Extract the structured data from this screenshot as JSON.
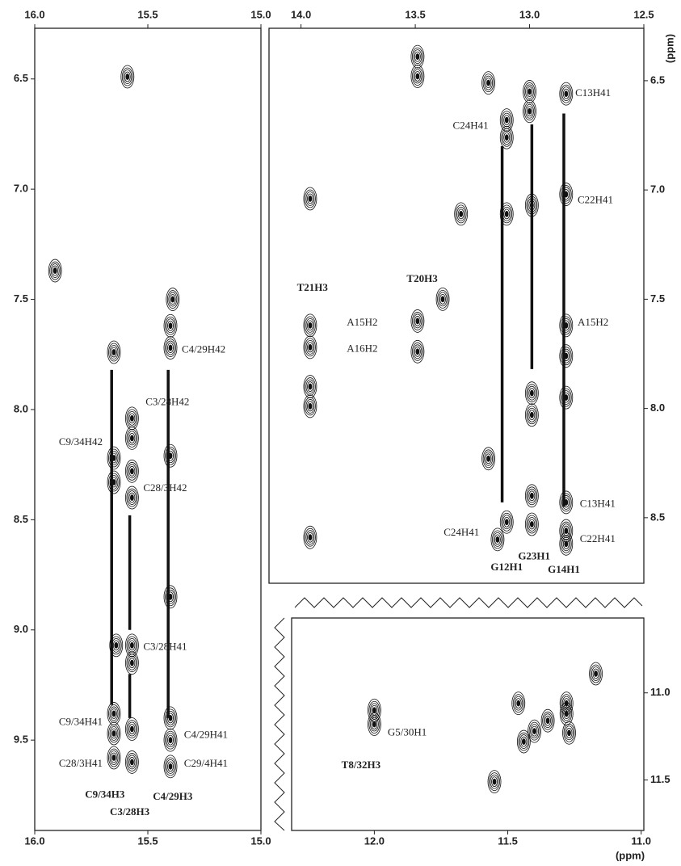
{
  "axis_unit": "(ppm)",
  "chart_data": [
    {
      "type": "contour",
      "x_axis": "both",
      "y_axis": "left",
      "xlim": [
        16.0,
        15.0
      ],
      "ylim": [
        6.27,
        9.91
      ],
      "xticks": [
        {
          "value": 16.0,
          "label": "16.0"
        },
        15.5,
        {
          "value": 15.0,
          "label": "15.0"
        }
      ],
      "yticks": [
        6.5,
        {
          "value": 7.0,
          "label": "7.0"
        },
        7.5,
        {
          "value": 8.0,
          "label": "8.0"
        },
        8.5,
        {
          "value": 9.0,
          "label": "9.0"
        },
        9.5
      ],
      "peaks": [
        {
          "x": 15.59,
          "y": 6.49
        },
        {
          "x": 15.91,
          "y": 7.37
        },
        {
          "x": 15.39,
          "y": 7.5
        },
        {
          "x": 15.4,
          "y": 7.62
        },
        {
          "x": 15.4,
          "y": 7.72
        },
        {
          "x": 15.65,
          "y": 7.74
        },
        {
          "x": 15.57,
          "y": 8.04
        },
        {
          "x": 15.57,
          "y": 8.13
        },
        {
          "x": 15.65,
          "y": 8.22
        },
        {
          "x": 15.65,
          "y": 8.33
        },
        {
          "x": 15.57,
          "y": 8.28
        },
        {
          "x": 15.57,
          "y": 8.4
        },
        {
          "x": 15.4,
          "y": 8.21
        },
        {
          "x": 15.4,
          "y": 8.85
        },
        {
          "x": 15.57,
          "y": 9.07
        },
        {
          "x": 15.57,
          "y": 9.15
        },
        {
          "x": 15.64,
          "y": 9.07
        },
        {
          "x": 15.65,
          "y": 9.38
        },
        {
          "x": 15.65,
          "y": 9.47
        },
        {
          "x": 15.65,
          "y": 9.58
        },
        {
          "x": 15.57,
          "y": 9.45
        },
        {
          "x": 15.57,
          "y": 9.6
        },
        {
          "x": 15.4,
          "y": 9.4
        },
        {
          "x": 15.4,
          "y": 9.5
        },
        {
          "x": 15.4,
          "y": 9.62
        }
      ],
      "lines": [
        {
          "x": 15.66,
          "y1": 7.82,
          "y2": 9.34
        },
        {
          "x": 15.58,
          "y1": 8.48,
          "y2": 9.0
        },
        {
          "x": 15.58,
          "y1": 9.2,
          "y2": 9.4
        },
        {
          "x": 15.41,
          "y1": 7.82,
          "y2": 9.4
        }
      ],
      "labels": [
        {
          "text": "C4/29H42",
          "x": 15.35,
          "y": 7.73,
          "anchor": "start"
        },
        {
          "text": "C3/28H42",
          "x": 15.51,
          "y": 7.97,
          "anchor": "start"
        },
        {
          "text": "C9/34H42",
          "x": 15.7,
          "y": 8.15,
          "anchor": "end"
        },
        {
          "text": "C28/3H42",
          "x": 15.52,
          "y": 8.36,
          "anchor": "start"
        },
        {
          "text": "C3/28H41",
          "x": 15.52,
          "y": 9.08,
          "anchor": "start"
        },
        {
          "text": "C9/34H41",
          "x": 15.7,
          "y": 9.42,
          "anchor": "end"
        },
        {
          "text": "C4/29H41",
          "x": 15.34,
          "y": 9.48,
          "anchor": "start"
        },
        {
          "text": "C28/3H41",
          "x": 15.7,
          "y": 9.61,
          "anchor": "end"
        },
        {
          "text": "C29/4H41",
          "x": 15.34,
          "y": 9.61,
          "anchor": "start"
        },
        {
          "text": "C9/34H3",
          "x": 15.69,
          "y": 9.75,
          "anchor": "middle",
          "bold": true
        },
        {
          "text": "C4/29H3",
          "x": 15.39,
          "y": 9.76,
          "anchor": "middle",
          "bold": true
        },
        {
          "text": "C3/28H3",
          "x": 15.58,
          "y": 9.83,
          "anchor": "middle",
          "bold": true
        }
      ]
    },
    {
      "type": "contour",
      "x_axis": "top",
      "y_axis": "right",
      "xlim": [
        14.14,
        12.5
      ],
      "ylim": [
        6.26,
        8.8
      ],
      "xticks": [
        {
          "value": 14.0,
          "label": "14.0"
        },
        13.5,
        {
          "value": 13.0,
          "label": "13.0"
        },
        12.5
      ],
      "yticks": [
        6.5,
        {
          "value": 7.0,
          "label": "7.0"
        },
        7.5,
        {
          "value": 8.0,
          "label": "8.0"
        },
        8.5
      ],
      "peaks": [
        {
          "x": 13.49,
          "y": 6.39
        },
        {
          "x": 13.49,
          "y": 6.48
        },
        {
          "x": 13.1,
          "y": 6.68
        },
        {
          "x": 13.1,
          "y": 6.76
        },
        {
          "x": 13.0,
          "y": 6.55
        },
        {
          "x": 13.0,
          "y": 6.64
        },
        {
          "x": 12.84,
          "y": 6.56
        },
        {
          "x": 13.18,
          "y": 6.51
        },
        {
          "x": 12.84,
          "y": 7.02
        },
        {
          "x": 12.99,
          "y": 7.07
        },
        {
          "x": 13.1,
          "y": 7.11
        },
        {
          "x": 13.96,
          "y": 7.04
        },
        {
          "x": 13.96,
          "y": 7.62
        },
        {
          "x": 13.96,
          "y": 7.72
        },
        {
          "x": 13.96,
          "y": 7.9
        },
        {
          "x": 13.96,
          "y": 7.99
        },
        {
          "x": 13.49,
          "y": 7.6
        },
        {
          "x": 13.49,
          "y": 7.74
        },
        {
          "x": 12.84,
          "y": 7.62
        },
        {
          "x": 12.84,
          "y": 7.76
        },
        {
          "x": 12.84,
          "y": 7.95
        },
        {
          "x": 12.99,
          "y": 7.93
        },
        {
          "x": 13.96,
          "y": 8.59
        },
        {
          "x": 13.1,
          "y": 8.52
        },
        {
          "x": 13.14,
          "y": 8.6
        },
        {
          "x": 12.99,
          "y": 8.4
        },
        {
          "x": 12.99,
          "y": 8.53
        },
        {
          "x": 12.84,
          "y": 8.56
        },
        {
          "x": 12.84,
          "y": 8.62
        },
        {
          "x": 13.18,
          "y": 8.23
        },
        {
          "x": 12.99,
          "y": 8.03
        },
        {
          "x": 12.84,
          "y": 8.43
        },
        {
          "x": 13.3,
          "y": 7.11
        },
        {
          "x": 13.38,
          "y": 7.5
        }
      ],
      "lines": [
        {
          "x": 13.12,
          "y1": 6.8,
          "y2": 8.43
        },
        {
          "x": 12.99,
          "y1": 6.7,
          "y2": 7.82
        },
        {
          "x": 12.85,
          "y1": 6.65,
          "y2": 8.45
        }
      ],
      "labels": [
        {
          "text": "C13H41",
          "x": 12.8,
          "y": 6.56,
          "anchor": "start"
        },
        {
          "text": "C24H41",
          "x": 13.18,
          "y": 6.71,
          "anchor": "end"
        },
        {
          "text": "C22H41",
          "x": 12.79,
          "y": 7.05,
          "anchor": "start"
        },
        {
          "text": "T21H3",
          "x": 13.95,
          "y": 7.45,
          "anchor": "middle",
          "bold": true
        },
        {
          "text": "T20H3",
          "x": 13.47,
          "y": 7.41,
          "anchor": "middle",
          "bold": true
        },
        {
          "text": "A15H2",
          "x": 13.8,
          "y": 7.61,
          "anchor": "start"
        },
        {
          "text": "A16H2",
          "x": 13.8,
          "y": 7.73,
          "anchor": "start"
        },
        {
          "text": "A15H2",
          "x": 12.79,
          "y": 7.61,
          "anchor": "start"
        },
        {
          "text": "C13H41",
          "x": 12.78,
          "y": 8.44,
          "anchor": "start"
        },
        {
          "text": "C24H41",
          "x": 13.22,
          "y": 8.57,
          "anchor": "end"
        },
        {
          "text": "C22H41",
          "x": 12.78,
          "y": 8.6,
          "anchor": "start"
        },
        {
          "text": "G23H1",
          "x": 12.98,
          "y": 8.68,
          "anchor": "middle",
          "bold": true
        },
        {
          "text": "G12H1",
          "x": 13.1,
          "y": 8.73,
          "anchor": "middle",
          "bold": true
        },
        {
          "text": "G14H1",
          "x": 12.85,
          "y": 8.74,
          "anchor": "middle",
          "bold": true
        }
      ]
    },
    {
      "type": "contour",
      "x_axis": "bottom",
      "y_axis": "right",
      "xlim": [
        12.31,
        10.99
      ],
      "ylim": [
        10.57,
        11.79
      ],
      "xticks": [
        {
          "value": 12.0,
          "label": "12.0"
        },
        11.5,
        {
          "value": 11.0,
          "label": "11.0"
        }
      ],
      "yticks": [
        {
          "value": 11.0,
          "label": "11.0"
        },
        11.5
      ],
      "peaks": [
        {
          "x": 12.0,
          "y": 11.1
        },
        {
          "x": 12.0,
          "y": 11.18
        },
        {
          "x": 11.4,
          "y": 11.22
        },
        {
          "x": 11.35,
          "y": 11.16
        },
        {
          "x": 11.44,
          "y": 11.28
        },
        {
          "x": 11.46,
          "y": 11.06
        },
        {
          "x": 11.28,
          "y": 11.06
        },
        {
          "x": 11.28,
          "y": 11.12
        },
        {
          "x": 11.27,
          "y": 11.23
        },
        {
          "x": 11.55,
          "y": 11.51
        },
        {
          "x": 11.17,
          "y": 10.89
        }
      ],
      "lines": [],
      "labels": [
        {
          "text": "G5/30H1",
          "x": 11.95,
          "y": 11.23,
          "anchor": "start"
        },
        {
          "text": "T8/32H3",
          "x": 12.05,
          "y": 11.42,
          "anchor": "middle",
          "bold": true
        }
      ]
    }
  ]
}
